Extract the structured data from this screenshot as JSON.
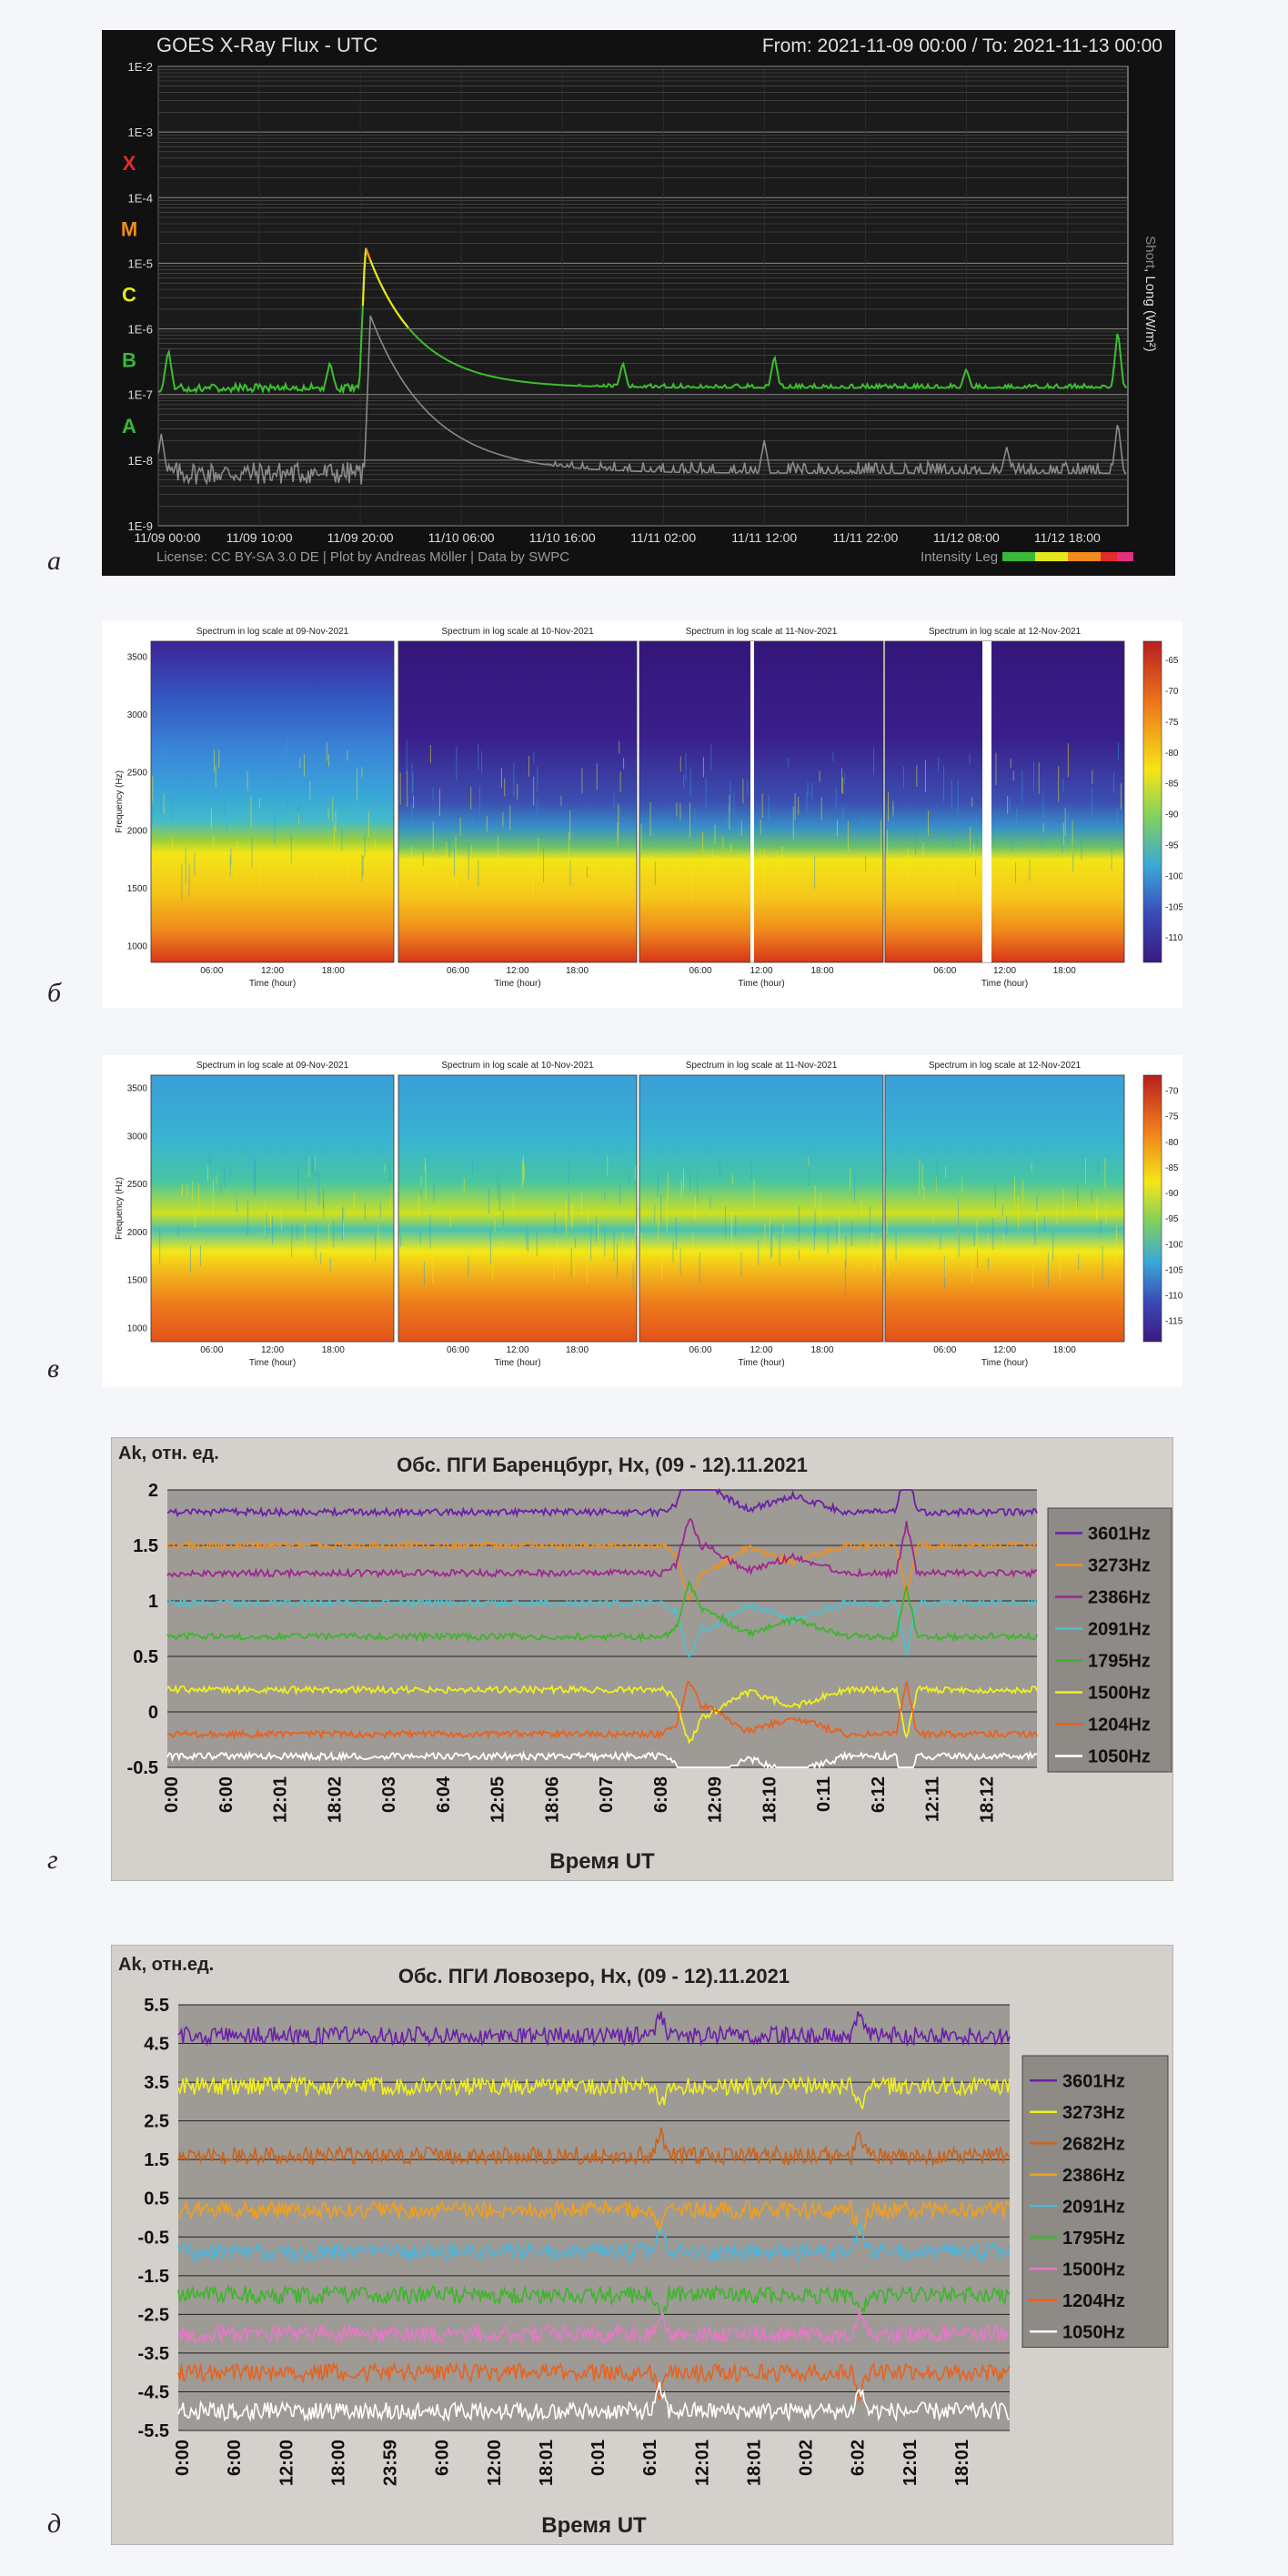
{
  "figure_letters": [
    "а",
    "б",
    "в",
    "г",
    "д"
  ],
  "chart_data": [
    {
      "type": "line",
      "title": "GOES X-Ray Flux - UTC",
      "range_text": "From: 2021-11-09 00:00  /  To: 2021-11-13 00:00",
      "y_scale": "log",
      "ylim": [
        "1E-9",
        "1E-2"
      ],
      "yticks": [
        "1E-2",
        "1E-3",
        "1E-4",
        "1E-5",
        "1E-6",
        "1E-7",
        "1E-8",
        "1E-9"
      ],
      "flare_classes": [
        {
          "label": "X",
          "color": "#e32b2b"
        },
        {
          "label": "M",
          "color": "#f08c1e"
        },
        {
          "label": "C",
          "color": "#e6e61e"
        },
        {
          "label": "B",
          "color": "#39b83a"
        },
        {
          "label": "A",
          "color": "#39b83a"
        }
      ],
      "xticks": [
        "11/09 00:00",
        "11/09 10:00",
        "11/09 20:00",
        "11/10 06:00",
        "11/10 16:00",
        "11/11 02:00",
        "11/11 12:00",
        "11/11 22:00",
        "11/12 08:00",
        "11/12 18:00"
      ],
      "right_label_short": "Short",
      "right_label_long": ", Long (W/m²)",
      "footer": "License: CC BY-SA 3.0 DE | Plot by Andreas Möller | Data by SWPC",
      "legend_text": "Intensity Leg",
      "grid": true,
      "series": [
        {
          "name": "Long",
          "color": "#3cbf2e",
          "peak_time_h": 20.5,
          "peak_value": "2E-5",
          "baseline": "1E-7"
        },
        {
          "name": "Short",
          "color": "#8a8a8a",
          "peak_time_h": 21,
          "peak_value": "2E-6",
          "baseline": "1E-8"
        }
      ]
    },
    {
      "type": "heatmap",
      "panels": [
        {
          "title": "Spectrum in log scale at 09-Nov-2021"
        },
        {
          "title": "Spectrum in log scale at 10-Nov-2021"
        },
        {
          "title": "Spectrum in log scale at 11-Nov-2021"
        },
        {
          "title": "Spectrum in log scale at 12-Nov-2021"
        }
      ],
      "ylabel": "Frequency (Hz)",
      "yticks": [
        "3500",
        "3000",
        "2500",
        "2000",
        "1500",
        "1000"
      ],
      "xticks": [
        "06:00",
        "12:00",
        "18:00"
      ],
      "xlabel": "Time (hour)",
      "colorbar_ticks": [
        "-65",
        "-70",
        "-75",
        "-80",
        "-85",
        "-90",
        "-95",
        "-100",
        "-105",
        "-110"
      ]
    },
    {
      "type": "heatmap",
      "panels": [
        {
          "title": "Spectrum in log scale at 09-Nov-2021"
        },
        {
          "title": "Spectrum in log scale at 10-Nov-2021"
        },
        {
          "title": "Spectrum in log scale at 11-Nov-2021"
        },
        {
          "title": "Spectrum in log scale at 12-Nov-2021"
        }
      ],
      "ylabel": "Frequency (Hz)",
      "yticks": [
        "3500",
        "3000",
        "2500",
        "2000",
        "1500",
        "1000"
      ],
      "xticks": [
        "06:00",
        "12:00",
        "18:00"
      ],
      "xlabel": "Time (hour)",
      "colorbar_ticks": [
        "-70",
        "-75",
        "-80",
        "-85",
        "-90",
        "-95",
        "-100",
        "-105",
        "-110",
        "-115"
      ]
    },
    {
      "type": "line",
      "title": "Обс. ПГИ Баренцбург, Hx, (09 - 12).11.2021",
      "ylabel_top": "Ak, отн. ед.",
      "xlabel": "Время UT",
      "ylim": [
        -0.5,
        2
      ],
      "yticks": [
        "2",
        "1.5",
        "1",
        "0.5",
        "0",
        "-0.5"
      ],
      "xticks": [
        "0:00",
        "6:00",
        "12:01",
        "18:02",
        "0:03",
        "6:04",
        "12:05",
        "18:06",
        "0:07",
        "6:08",
        "12:09",
        "18:10",
        "0:11",
        "6:12",
        "12:11",
        "18:12"
      ],
      "series": [
        {
          "name": "3601Hz",
          "color": "#6a1fa8",
          "level": 1.8
        },
        {
          "name": "3273Hz",
          "color": "#f0901e",
          "level": 1.5
        },
        {
          "name": "2386Hz",
          "color": "#a0268f",
          "level": 1.25
        },
        {
          "name": "2091Hz",
          "color": "#49c2cf",
          "level": 0.98
        },
        {
          "name": "1795Hz",
          "color": "#3cb62a",
          "level": 0.68
        },
        {
          "name": "1500Hz",
          "color": "#f0f01e",
          "level": 0.2
        },
        {
          "name": "1204Hz",
          "color": "#e8621e",
          "level": -0.2
        },
        {
          "name": "1050Hz",
          "color": "#ffffff",
          "level": -0.4
        }
      ]
    },
    {
      "type": "line",
      "title": "Обс. ПГИ Ловозеро, Hx, (09 - 12).11.2021",
      "ylabel_top": "Ak, отн.ед.",
      "xlabel": "Время UT",
      "ylim": [
        -5.5,
        5.5
      ],
      "yticks": [
        "5.5",
        "4.5",
        "3.5",
        "2.5",
        "1.5",
        "0.5",
        "-0.5",
        "-1.5",
        "-2.5",
        "-3.5",
        "-4.5",
        "-5.5"
      ],
      "xticks": [
        "0:00",
        "6:00",
        "12:00",
        "18:00",
        "23:59",
        "6:00",
        "12:00",
        "18:01",
        "0:01",
        "6:01",
        "12:01",
        "18:01",
        "0:02",
        "6:02",
        "12:01",
        "18:01"
      ],
      "series": [
        {
          "name": "3601Hz",
          "color": "#6a1fa8",
          "level": 4.7
        },
        {
          "name": "3273Hz",
          "color": "#f0f01e",
          "level": 3.4
        },
        {
          "name": "2682Hz",
          "color": "#c8641e",
          "level": 1.6
        },
        {
          "name": "2386Hz",
          "color": "#f0a01e",
          "level": 0.2
        },
        {
          "name": "2091Hz",
          "color": "#49b8e0",
          "level": -0.9
        },
        {
          "name": "1795Hz",
          "color": "#3cb62a",
          "level": -2.0
        },
        {
          "name": "1500Hz",
          "color": "#e878c8",
          "level": -3.0
        },
        {
          "name": "1204Hz",
          "color": "#e8621e",
          "level": -4.0
        },
        {
          "name": "1050Hz",
          "color": "#ffffff",
          "level": -5.0
        }
      ]
    }
  ]
}
